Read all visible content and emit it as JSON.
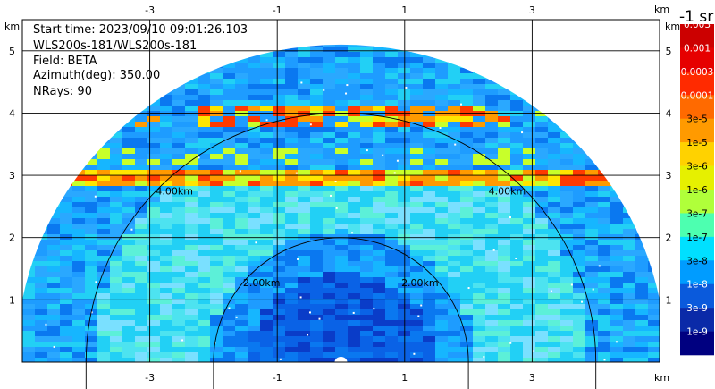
{
  "info": {
    "start_time": "Start time: 2023/09/10 09:01:26.103",
    "instrument": "WLS200s-181/WLS200s-181",
    "field": "Field: BETA",
    "azimuth": "Azimuth(deg): 350.00",
    "nrays": "NRays: 90"
  },
  "colorbar": {
    "title": "-1 sr",
    "labels": [
      "0.003",
      "0.001",
      "0.0003",
      "0.0001",
      "3e-5",
      "1e-5",
      "3e-6",
      "1e-6",
      "3e-7",
      "1e-7",
      "3e-8",
      "1e-8",
      "3e-9",
      "1e-9"
    ],
    "colors": [
      "#cc0000",
      "#e60000",
      "#ff2a00",
      "#ff6a00",
      "#ff9a00",
      "#ffd200",
      "#e6f000",
      "#b0ff3a",
      "#4dffb0",
      "#00e0ff",
      "#009cff",
      "#0a5adc",
      "#0a2aa8",
      "#000080"
    ]
  },
  "chart_data": {
    "type": "heatmap",
    "subtype": "RHI radar sector scan",
    "x_unit": "km",
    "y_unit": "km",
    "xlim": [
      -5,
      5
    ],
    "ylim": [
      0,
      5.5
    ],
    "x_ticks": [
      "-3",
      "-1",
      "1",
      "3"
    ],
    "x_tick_values": [
      -3,
      -1,
      1,
      3
    ],
    "y_ticks": [
      "1",
      "2",
      "3",
      "4",
      "5"
    ],
    "y_tick_values": [
      1,
      2,
      3,
      4,
      5
    ],
    "grid": true,
    "range_rings": [
      {
        "radius_km": 2,
        "label": "2.00km"
      },
      {
        "radius_km": 4,
        "label": "4.00km"
      }
    ],
    "max_range_km": 5.1,
    "features": [
      {
        "kind": "aerosol_layer_top",
        "height_km": 3.0,
        "level": "1e-5 to 3e-5"
      },
      {
        "kind": "cloud_layer",
        "height_km": 4.0,
        "level": "1e-5 to 3e-5"
      }
    ]
  }
}
